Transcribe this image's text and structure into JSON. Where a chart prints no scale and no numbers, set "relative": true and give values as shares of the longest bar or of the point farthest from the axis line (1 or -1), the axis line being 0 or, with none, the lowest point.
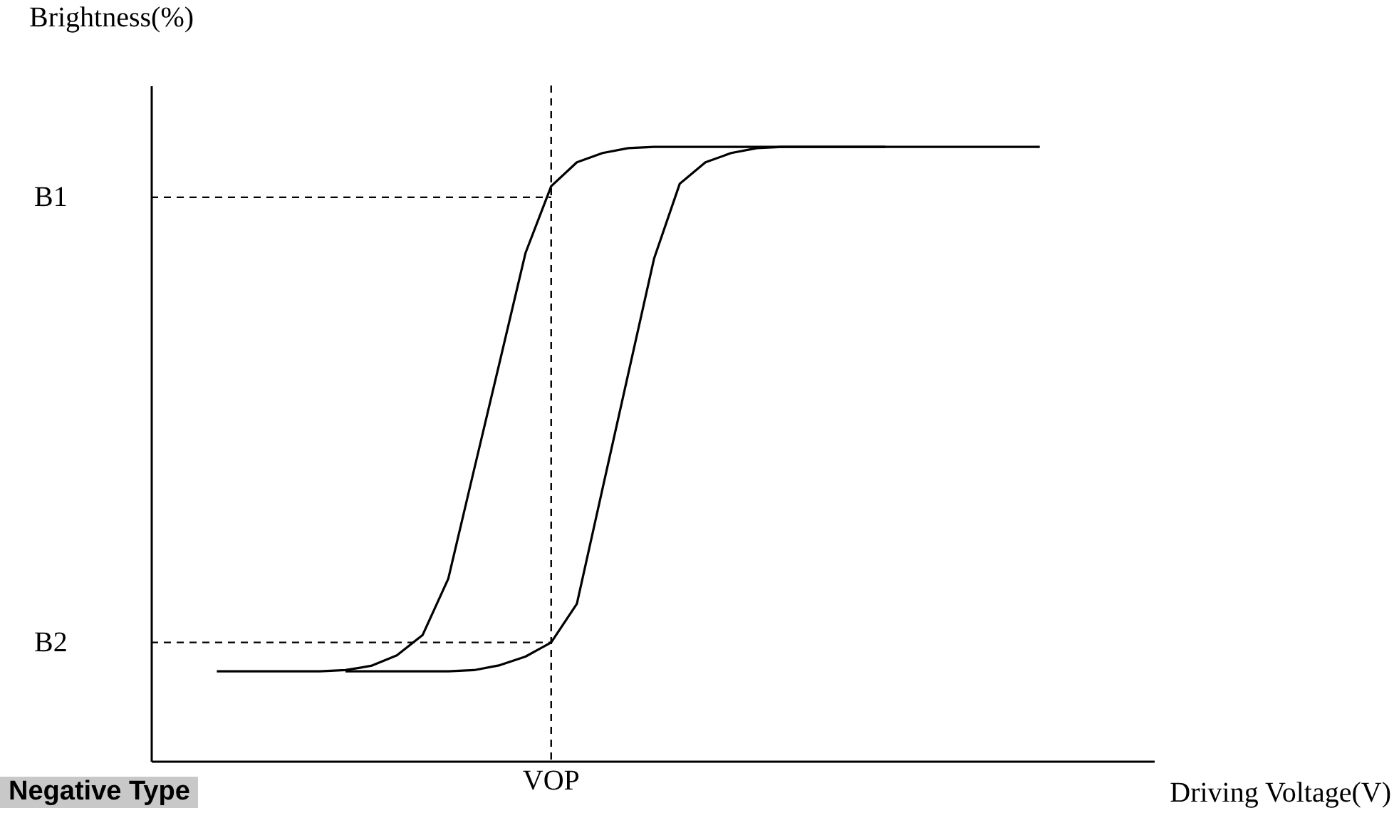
{
  "chart_data": {
    "type": "line",
    "relative": true,
    "xlabel": "Driving Voltage(V)",
    "ylabel": "Brightness(%)",
    "legend": false,
    "marker": "none",
    "line_style": "solid",
    "categories": [
      null,
      null,
      null,
      null,
      null,
      null,
      null,
      null,
      null,
      null,
      null,
      null,
      null,
      null,
      null,
      null,
      null,
      null,
      null,
      null,
      null,
      null,
      null,
      null,
      null,
      null,
      null,
      null,
      null,
      null,
      null,
      null,
      null
    ],
    "series": [
      {
        "color": "#000000",
        "values": [
          0.146,
          0.146,
          0.146,
          0.146,
          0.146,
          0.148,
          0.155,
          0.172,
          0.205,
          0.297,
          0.474,
          0.65,
          0.827,
          0.936,
          0.975,
          0.99,
          0.998,
          1,
          1,
          1,
          1,
          1,
          1,
          1,
          1,
          1,
          1,
          1,
          1,
          1,
          1,
          1,
          1
        ]
      },
      {
        "color": "#000000",
        "values": [
          null,
          null,
          null,
          null,
          null,
          0.146,
          0.146,
          0.146,
          0.146,
          0.146,
          0.148,
          0.156,
          0.17,
          0.193,
          0.256,
          0.444,
          0.631,
          0.818,
          0.94,
          0.975,
          0.99,
          0.998,
          1,
          1,
          1,
          1,
          1,
          null,
          null,
          null,
          null,
          null,
          null
        ]
      }
    ],
    "ref_lines": [
      {
        "axis": "y",
        "value": 0.918,
        "label": "B1",
        "line_style": "dashed",
        "color": "#000000"
      },
      {
        "axis": "y",
        "value": 0.193,
        "label": "B2",
        "line_style": "dashed",
        "color": "#000000"
      }
    ],
    "annotations": [
      "VOP",
      "Negative Type"
    ]
  }
}
